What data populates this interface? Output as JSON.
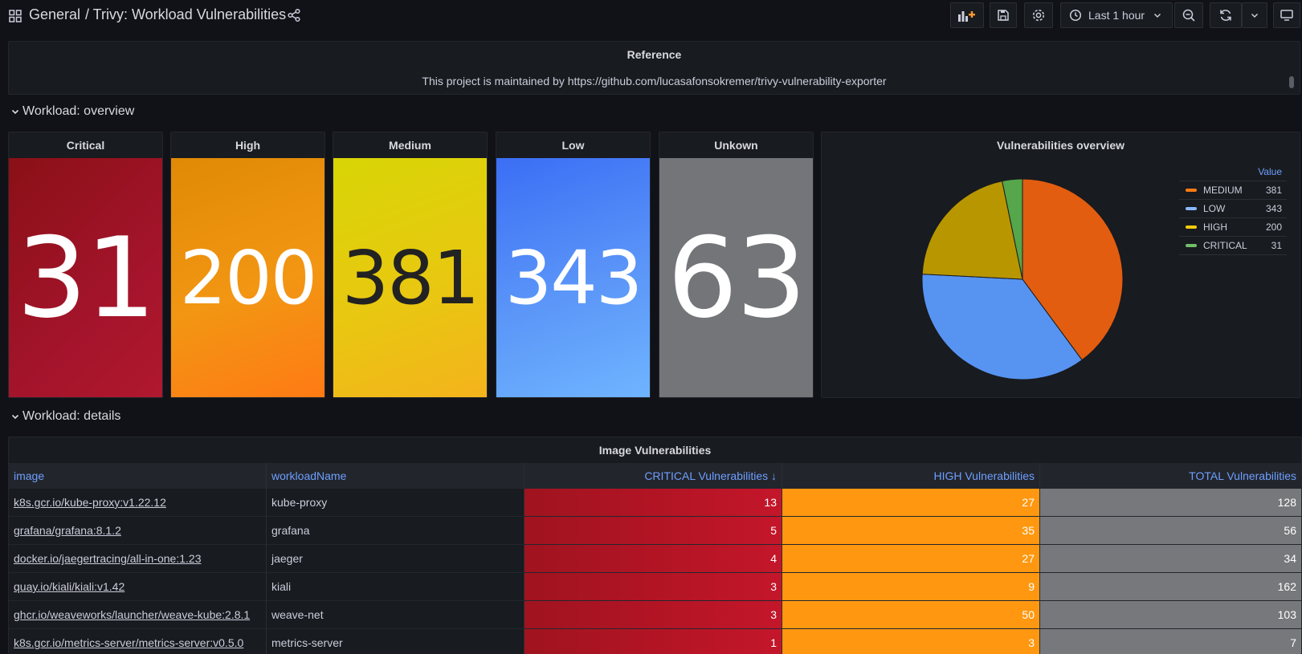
{
  "header": {
    "root": "General",
    "title": "/ Trivy: Workload Vulnerabilities",
    "time_range": "Last 1 hour"
  },
  "reference": {
    "title": "Reference",
    "text": "This project is maintained by https://github.com/lucasafonsokremer/trivy-vulnerability-exporter"
  },
  "rows": {
    "overview": "Workload: overview",
    "details": "Workload: details"
  },
  "stats": [
    {
      "title": "Critical",
      "value": "31"
    },
    {
      "title": "High",
      "value": "200"
    },
    {
      "title": "Medium",
      "value": "381"
    },
    {
      "title": "Low",
      "value": "343"
    },
    {
      "title": "Unkown",
      "value": "63"
    }
  ],
  "pie": {
    "title": "Vulnerabilities overview",
    "legend_header": "Value",
    "legend": [
      {
        "name": "MEDIUM",
        "value": "381"
      },
      {
        "name": "LOW",
        "value": "343"
      },
      {
        "name": "HIGH",
        "value": "200"
      },
      {
        "name": "CRITICAL",
        "value": "31"
      }
    ]
  },
  "chart_data": {
    "type": "pie",
    "title": "Vulnerabilities overview",
    "labels": [
      "MEDIUM",
      "LOW",
      "HIGH",
      "CRITICAL"
    ],
    "values": [
      381,
      343,
      200,
      31
    ],
    "colors": [
      "#e25d0f",
      "#5794f2",
      "#b89600",
      "#56a64b"
    ],
    "legend_position": "right"
  },
  "colors": {
    "critical": "#c4162a",
    "high": "#ff9830",
    "medium": "#e0c400",
    "low": "#5794f2",
    "unknown": "#77787b"
  },
  "table": {
    "title": "Image Vulnerabilities",
    "columns": [
      "image",
      "workloadName",
      "CRITICAL Vulnerabilities",
      "HIGH Vulnerabilities",
      "TOTAL Vulnerabilities"
    ],
    "sort_indicator": "↓",
    "rows": [
      {
        "image": "k8s.gcr.io/kube-proxy:v1.22.12",
        "workload": "kube-proxy",
        "critical": "13",
        "high": "27",
        "total": "128"
      },
      {
        "image": "grafana/grafana:8.1.2",
        "workload": "grafana",
        "critical": "5",
        "high": "35",
        "total": "56"
      },
      {
        "image": "docker.io/jaegertracing/all-in-one:1.23",
        "workload": "jaeger",
        "critical": "4",
        "high": "27",
        "total": "34"
      },
      {
        "image": "quay.io/kiali/kiali:v1.42",
        "workload": "kiali",
        "critical": "3",
        "high": "9",
        "total": "162"
      },
      {
        "image": "ghcr.io/weaveworks/launcher/weave-kube:2.8.1",
        "workload": "weave-net",
        "critical": "3",
        "high": "50",
        "total": "103"
      },
      {
        "image": "k8s.gcr.io/metrics-server/metrics-server:v0.5.0",
        "workload": "metrics-server",
        "critical": "1",
        "high": "3",
        "total": "7"
      }
    ]
  }
}
